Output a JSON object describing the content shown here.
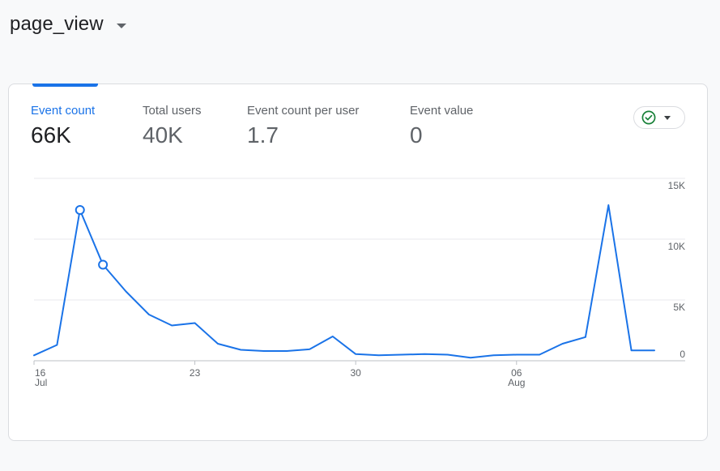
{
  "header": {
    "title": "page_view"
  },
  "metrics": [
    {
      "label": "Event count",
      "value": "66K",
      "active": true
    },
    {
      "label": "Total users",
      "value": "40K",
      "active": false
    },
    {
      "label": "Event count per user",
      "value": "1.7",
      "active": false
    },
    {
      "label": "Event value",
      "value": "0",
      "active": false
    }
  ],
  "compare_button": {
    "icon": "check-circle-icon",
    "status_color": "#188038"
  },
  "colors": {
    "accent": "#1a73e8",
    "line": "#1a73e8"
  },
  "chart_data": {
    "type": "line",
    "x": [
      "Jul 16",
      "Jul 17",
      "Jul 18",
      "Jul 19",
      "Jul 20",
      "Jul 21",
      "Jul 22",
      "Jul 23",
      "Jul 24",
      "Jul 25",
      "Jul 26",
      "Jul 27",
      "Jul 28",
      "Jul 29",
      "Jul 30",
      "Jul 31",
      "Aug 1",
      "Aug 2",
      "Aug 3",
      "Aug 4",
      "Aug 5",
      "Aug 6",
      "Aug 7",
      "Aug 8",
      "Aug 9",
      "Aug 10",
      "Aug 11",
      "Aug 12"
    ],
    "series": [
      {
        "values": [
          450,
          1300,
          12400,
          7900,
          5700,
          3800,
          2900,
          3100,
          1400,
          900,
          800,
          800,
          950,
          2000,
          550,
          450,
          500,
          550,
          500,
          250,
          450,
          500,
          500,
          1400,
          1950,
          12800,
          850,
          850
        ],
        "markers": [
          2,
          3
        ]
      }
    ],
    "x_ticks": [
      {
        "index": 0,
        "label": "16",
        "sublabel": "Jul"
      },
      {
        "index": 7,
        "label": "23",
        "sublabel": ""
      },
      {
        "index": 14,
        "label": "30",
        "sublabel": ""
      },
      {
        "index": 21,
        "label": "06",
        "sublabel": "Aug"
      }
    ],
    "y_ticks": [
      {
        "value": 0,
        "label": "0"
      },
      {
        "value": 5000,
        "label": "5K"
      },
      {
        "value": 10000,
        "label": "10K"
      },
      {
        "value": 15000,
        "label": "15K"
      }
    ],
    "ylim": [
      0,
      15000
    ],
    "grid": true,
    "y_axis_position": "right"
  }
}
